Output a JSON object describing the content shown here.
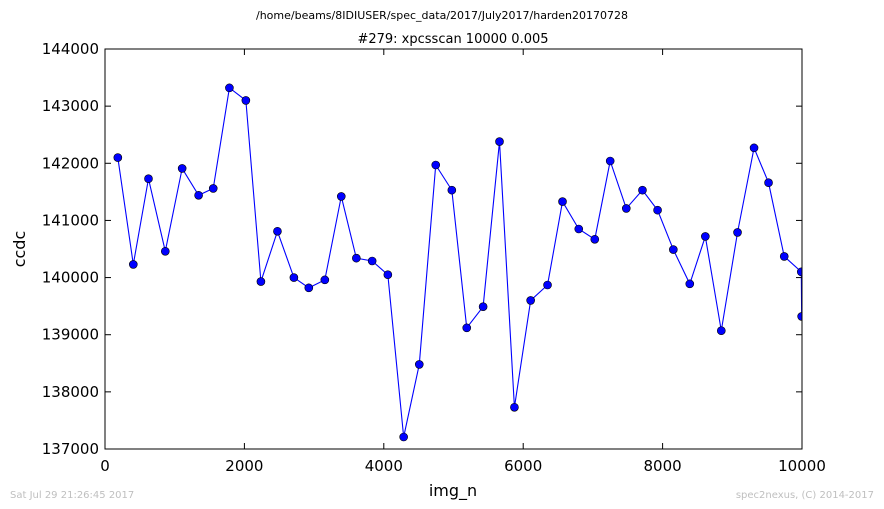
{
  "header": {
    "suptitle": "/home/beams/8IDIUSER/spec_data/2017/July2017/harden20170728"
  },
  "footer": {
    "timestamp": "Sat Jul 29 21:26:45 2017",
    "credit": "spec2nexus, (C) 2014-2017"
  },
  "chart_data": {
    "type": "line",
    "title": "#279: xpcsscan 10000 0.005",
    "xlabel": "img_n",
    "ylabel": "ccdc",
    "xlim": [
      0,
      10000
    ],
    "ylim": [
      137000,
      144000
    ],
    "xticks": [
      0,
      2000,
      4000,
      6000,
      8000,
      10000
    ],
    "yticks": [
      137000,
      138000,
      139000,
      140000,
      141000,
      142000,
      143000,
      144000
    ],
    "marker": "circle",
    "color": "#0000ff",
    "grid": false,
    "series": [
      {
        "x": [
          184,
          406,
          624,
          865,
          1107,
          1343,
          1553,
          1785,
          2021,
          2237,
          2474,
          2710,
          2924,
          3154,
          3390,
          3606,
          3833,
          4058,
          4285,
          4509,
          4745,
          4976,
          5190,
          5425,
          5660,
          5874,
          6107,
          6349,
          6564,
          6797,
          7027,
          7248,
          7479,
          7711,
          7928,
          8154,
          8390,
          8613,
          8842,
          9075,
          9312,
          9520,
          9745,
          9990,
          9995
        ],
        "y": [
          142100,
          140230,
          141730,
          140460,
          141910,
          141440,
          141560,
          143320,
          143100,
          139930,
          140810,
          140000,
          139820,
          139960,
          141420,
          140340,
          140290,
          140050,
          137210,
          138480,
          141970,
          141530,
          139120,
          139490,
          142380,
          137730,
          139600,
          139870,
          141330,
          140850,
          140670,
          142040,
          141210,
          141530,
          141180,
          140490,
          139890,
          140720,
          139070,
          140790,
          142270,
          141660,
          140370,
          140100,
          139320
        ]
      }
    ]
  }
}
